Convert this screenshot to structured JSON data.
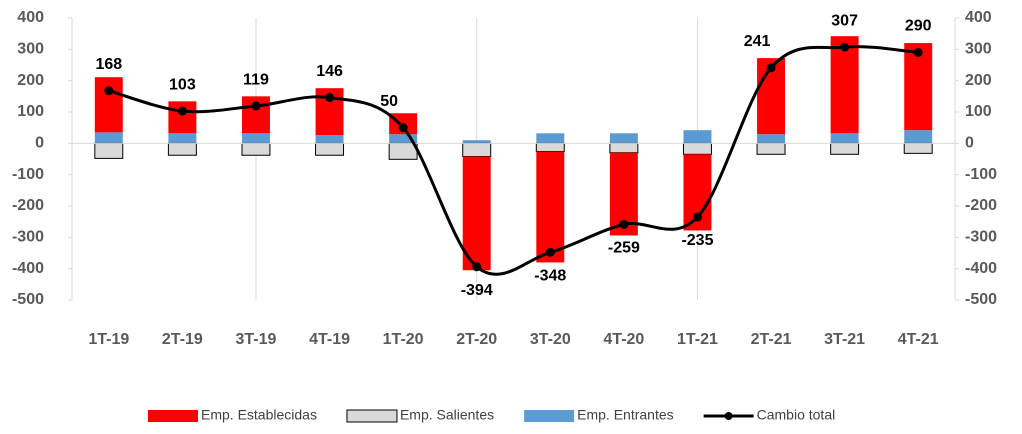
{
  "chart_data": {
    "type": "bar-line",
    "categories": [
      "1T-19",
      "2T-19",
      "3T-19",
      "4T-19",
      "1T-20",
      "2T-20",
      "3T-20",
      "4T-20",
      "1T-21",
      "2T-21",
      "3T-21",
      "4T-21"
    ],
    "series": [
      {
        "name": "Emp. Establecidas",
        "color": "#ff0000",
        "values": [
          176,
          102,
          118,
          150,
          67,
          -363,
          -354,
          -264,
          -243,
          243,
          310,
          278
        ]
      },
      {
        "name": "Emp. Salientes",
        "color": "#d9d9d9",
        "values": [
          -48,
          -38,
          -38,
          -38,
          -51,
          -42,
          -26,
          -30,
          -35,
          -35,
          -35,
          -32
        ]
      },
      {
        "name": "Emp. Entrantes",
        "color": "#5b9bd5",
        "values": [
          35,
          32,
          32,
          26,
          29,
          10,
          32,
          32,
          42,
          29,
          32,
          42
        ]
      },
      {
        "name": "Cambio total",
        "color": "#000000",
        "type": "line",
        "values": [
          168,
          103,
          119,
          146,
          50,
          -394,
          -348,
          -259,
          -235,
          241,
          307,
          290
        ]
      }
    ],
    "ylim": [
      -500,
      400
    ],
    "yticks": [
      -500,
      -400,
      -300,
      -200,
      -100,
      0,
      100,
      200,
      300,
      400
    ],
    "y2lim": [
      -500,
      400
    ],
    "y2ticks": [
      -500,
      -400,
      -300,
      -200,
      -100,
      0,
      100,
      200,
      300,
      400
    ],
    "legend": "bottom"
  }
}
